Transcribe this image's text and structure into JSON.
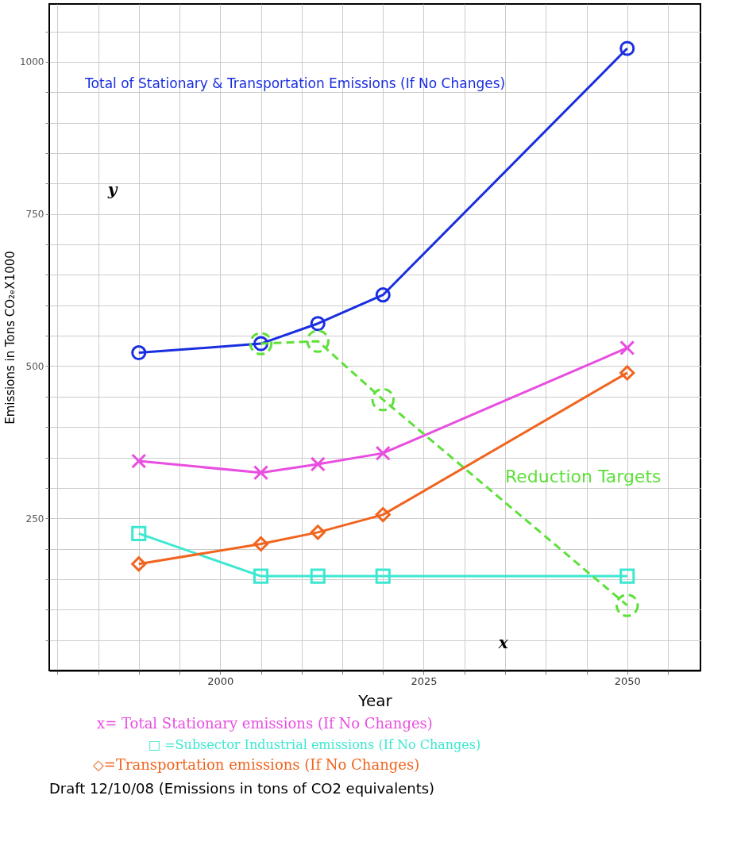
{
  "chart_data": {
    "type": "line",
    "xlabel": "Year",
    "ylabel": "Emissions in Tons CO₂ₑX1000",
    "x": [
      1990,
      2005,
      2012,
      2020,
      2050
    ],
    "series": [
      {
        "name": "Total of Stationary & Transportation Emissions (If No Changes)",
        "color": "#1a2ee0",
        "marker": "circle",
        "line_style": "solid",
        "values": [
          522,
          537,
          570,
          617,
          1022
        ]
      },
      {
        "name": "x= Total Stationary emissions (If No Changes)",
        "color": "#e84ee0",
        "marker": "cross",
        "line_style": "solid",
        "values": [
          344,
          325,
          339,
          357,
          530
        ]
      },
      {
        "name": "□ =Subsector Industrial emissions (If No Changes)",
        "color": "#3de8d0",
        "marker": "square",
        "line_style": "solid",
        "values": [
          225,
          155,
          155,
          155,
          155
        ]
      },
      {
        "name": "◇=Transportation emissions (If No Changes)",
        "color": "#f0641e",
        "marker": "diamond",
        "line_style": "solid",
        "values": [
          175,
          208,
          227,
          256,
          489
        ]
      },
      {
        "name": "Reduction Targets",
        "color": "#5ee03a",
        "marker": "circle",
        "line_style": "dashed",
        "values": [
          null,
          537,
          541,
          445,
          107
        ]
      }
    ],
    "xlim": [
      1979,
      2059
    ],
    "xticks": [
      {
        "value": 1980,
        "label": null
      },
      {
        "value": 1985,
        "label": null
      },
      {
        "value": 1990,
        "label": null
      },
      {
        "value": 1995,
        "label": null
      },
      2000,
      {
        "value": 2005,
        "label": null
      },
      {
        "value": 2010,
        "label": null
      },
      {
        "value": 2015,
        "label": null
      },
      {
        "value": 2020,
        "label": null
      },
      2025,
      {
        "value": 2030,
        "label": null
      },
      {
        "value": 2035,
        "label": null
      },
      {
        "value": 2040,
        "label": null
      },
      {
        "value": 2045,
        "label": null
      },
      2050,
      {
        "value": 2055,
        "label": null
      }
    ],
    "ylim": [
      0,
      1095
    ],
    "yticks": [
      {
        "value": 50,
        "label": null
      },
      {
        "value": 100,
        "label": null
      },
      {
        "value": 150,
        "label": null
      },
      {
        "value": 200,
        "label": null
      },
      250,
      {
        "value": 300,
        "label": null
      },
      {
        "value": 350,
        "label": null
      },
      {
        "value": 400,
        "label": null
      },
      {
        "value": 450,
        "label": null
      },
      500,
      {
        "value": 550,
        "label": null
      },
      {
        "value": 600,
        "label": null
      },
      {
        "value": 650,
        "label": null
      },
      {
        "value": 700,
        "label": null
      },
      750,
      {
        "value": 800,
        "label": null
      },
      {
        "value": 850,
        "label": null
      },
      {
        "value": 900,
        "label": null
      },
      {
        "value": 950,
        "label": null
      },
      1000,
      {
        "value": 1050,
        "label": null
      }
    ],
    "grid": true,
    "legend": "bottom",
    "annotations": [
      "y",
      "x",
      "Draft 12/10/08   (Emissions in tons of CO2 equivalents)"
    ]
  }
}
